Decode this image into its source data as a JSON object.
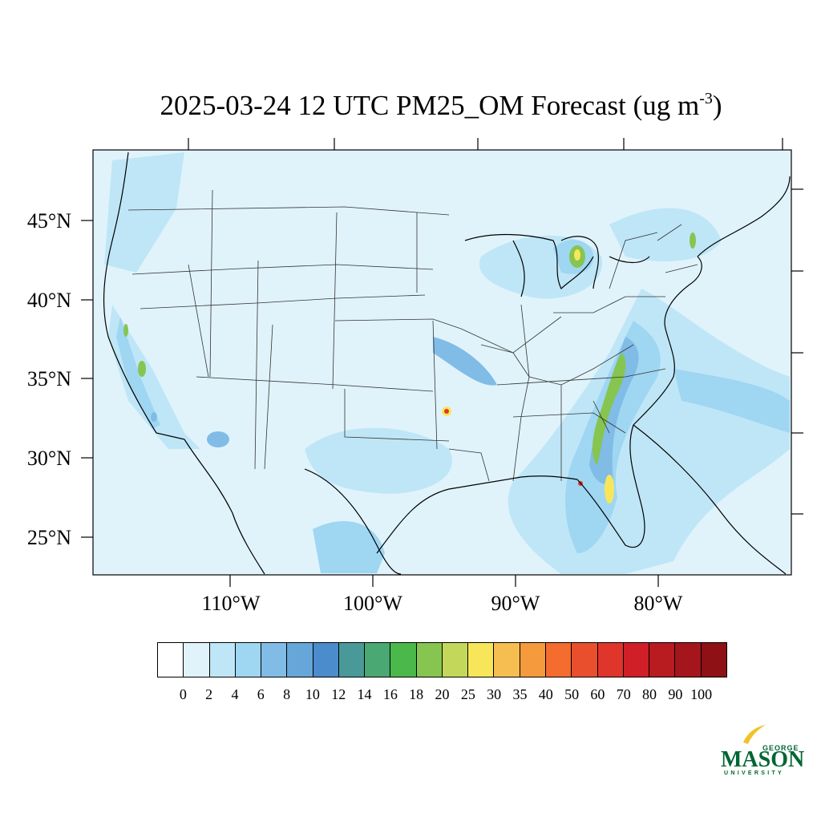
{
  "title": {
    "main": "2025-03-24 12 UTC PM25_OM Forecast (ug m",
    "superscript": "-3",
    "close": ")"
  },
  "latitude_labels": [
    "45°N",
    "40°N",
    "35°N",
    "30°N",
    "25°N"
  ],
  "longitude_labels": [
    "110°W",
    "100°W",
    "90°W",
    "80°W"
  ],
  "colorbar": {
    "tick_labels": [
      "0",
      "2",
      "4",
      "6",
      "8",
      "10",
      "12",
      "14",
      "16",
      "18",
      "20",
      "25",
      "30",
      "35",
      "40",
      "50",
      "60",
      "70",
      "80",
      "90",
      "100"
    ],
    "colors": [
      "#ffffff",
      "#e0f3fb",
      "#bfe6f7",
      "#9fd6f2",
      "#80bce6",
      "#66a6d9",
      "#4a8ccc",
      "#4a9999",
      "#4aa873",
      "#4ab84a",
      "#86c550",
      "#c3d85a",
      "#f8e65a",
      "#f6be50",
      "#f59a3d",
      "#f46c2e",
      "#ea4f2d",
      "#e0352b",
      "#d01f27",
      "#b81b20",
      "#a4161c",
      "#8e1115"
    ]
  },
  "map_colors": {
    "background": "#e0f3fb",
    "light": "#bfe6f7",
    "mid": "#9fd6f2",
    "dark": "#80bce6",
    "green": "#86c550",
    "yellow": "#f8e65a",
    "red": "#e0352b"
  },
  "logo": {
    "top": "GEORGE",
    "main": "MASON",
    "bottom": "UNIVERSITY",
    "color": "#006633",
    "accent": "#f2c22b"
  }
}
